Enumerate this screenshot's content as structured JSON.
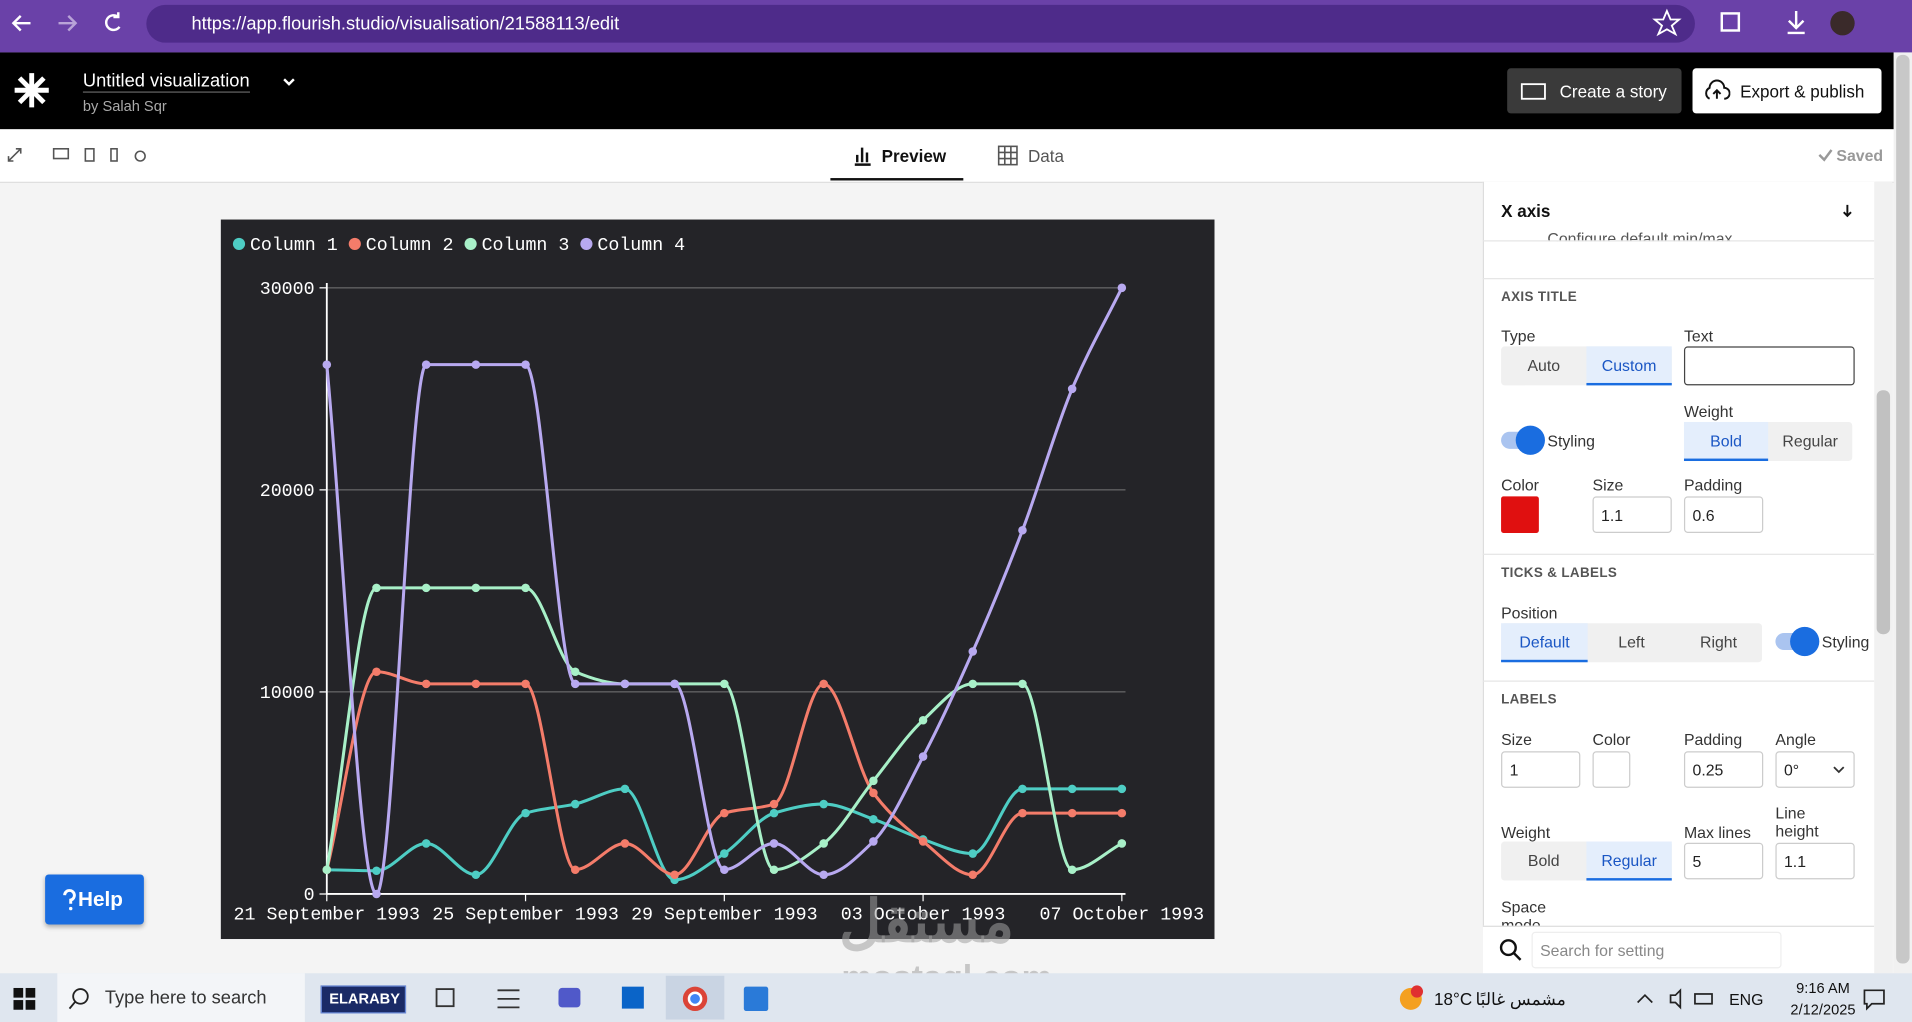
{
  "chart_data": {
    "type": "line",
    "x": [
      "1993-09-21",
      "1993-09-22",
      "1993-09-23",
      "1993-09-24",
      "1993-09-25",
      "1993-09-26",
      "1993-09-27",
      "1993-09-28",
      "1993-09-29",
      "1993-09-30",
      "1993-10-01",
      "1993-10-02",
      "1993-10-03",
      "1993-10-04",
      "1993-10-05",
      "1993-10-06",
      "1993-10-07"
    ],
    "series": [
      {
        "name": "Column 1",
        "color": "#4ecdc4",
        "values": [
          1200,
          1150,
          2500,
          950,
          4000,
          4450,
          5200,
          700,
          2000,
          4000,
          4450,
          3700,
          2700,
          2000,
          5200,
          5200,
          5200
        ]
      },
      {
        "name": "Column 2",
        "color": "#f47c6a",
        "values": [
          1200,
          11000,
          10400,
          10400,
          10400,
          1200,
          2500,
          950,
          4000,
          4450,
          10400,
          5000,
          2600,
          950,
          4000,
          4000,
          4000
        ]
      },
      {
        "name": "Column 3",
        "color": "#a8f0c8",
        "values": [
          1200,
          15150,
          15150,
          15150,
          15150,
          11000,
          10400,
          10400,
          10400,
          1200,
          2500,
          5600,
          8600,
          10400,
          10400,
          1200,
          2500
        ]
      },
      {
        "name": "Column 4",
        "color": "#b8a9f0",
        "values": [
          26200,
          0,
          26200,
          26200,
          26200,
          10400,
          10400,
          10400,
          1200,
          2500,
          950,
          2600,
          6800,
          12000,
          18000,
          25000,
          30000
        ]
      }
    ],
    "xlim": [
      "1993-09-21",
      "1993-10-07"
    ],
    "xticks": [
      {
        "value": "1993-09-21",
        "label": "21 September 1993"
      },
      {
        "value": "1993-09-25",
        "label": "25 September 1993"
      },
      {
        "value": "1993-09-29",
        "label": "29 September 1993"
      },
      {
        "value": "1993-10-03",
        "label": "03 October 1993"
      },
      {
        "value": "1993-10-07",
        "label": "07 October 1993"
      }
    ],
    "ylim": [
      0,
      30000
    ],
    "yticks": [
      0,
      10000,
      20000,
      30000
    ],
    "grid": true,
    "legend": "top"
  },
  "browser": {
    "url": "https://app.flourish.studio/visualisation/21588113/edit"
  },
  "header": {
    "title": "Untitled visualization",
    "author": "by Salah Sqr",
    "create_story": "Create a story",
    "export": "Export & publish"
  },
  "toolbar": {
    "tabs": [
      "Preview",
      "Data"
    ],
    "status": "Saved"
  },
  "panel": {
    "section": "X axis",
    "partial_row": "Configure default min/max",
    "axis_title": {
      "heading": "AXIS TITLE",
      "type_label": "Type",
      "type_options": [
        "Auto",
        "Custom"
      ],
      "text_label": "Text",
      "styling": "Styling",
      "weight_label": "Weight",
      "weight_options": [
        "Bold",
        "Regular"
      ],
      "color_label": "Color",
      "size_label": "Size",
      "size": "1.1",
      "padding_label": "Padding",
      "padding": "0.6"
    },
    "ticks": {
      "heading": "TICKS & LABELS",
      "position_label": "Position",
      "position_options": [
        "Default",
        "Left",
        "Right"
      ],
      "styling": "Styling"
    },
    "labels": {
      "heading": "LABELS",
      "size_label": "Size",
      "size": "1",
      "color_label": "Color",
      "padding_label": "Padding",
      "padding": "0.25",
      "angle_label": "Angle",
      "angle": "0°",
      "weight_label": "Weight",
      "weight_options": [
        "Bold",
        "Regular"
      ],
      "max_lines_label": "Max lines",
      "max_lines": "5",
      "line_height_label": "Line height",
      "line_height": "1.1",
      "space_mode_label": "Space mode"
    },
    "search_placeholder": "Search for setting"
  },
  "help": "Help",
  "watermark": [
    "مستقل",
    "mostaql.com"
  ],
  "taskbar": {
    "search": "Type here to search",
    "brand": "ELARABY",
    "weather": "18°C",
    "weather_desc": "مشمس غالبًا",
    "lang": "ENG",
    "time": "9:16 AM",
    "date": "2/12/2025"
  }
}
